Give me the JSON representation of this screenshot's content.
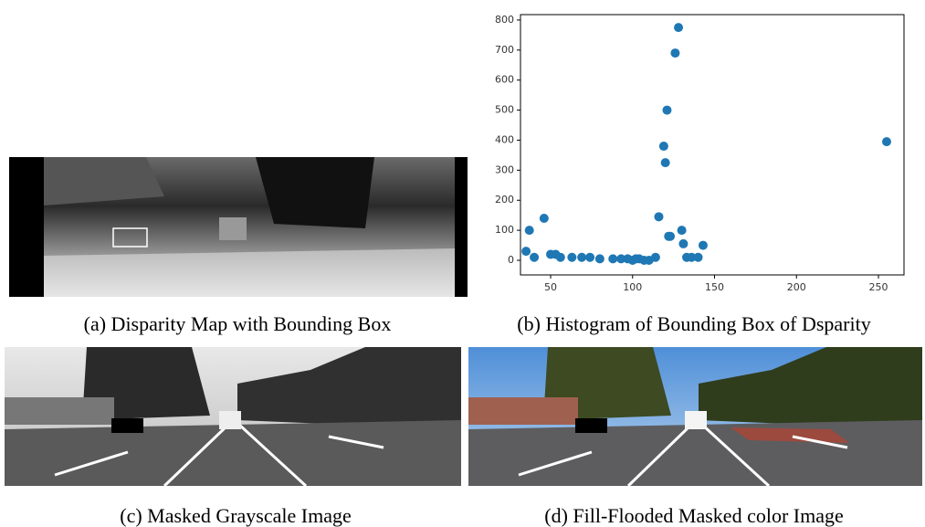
{
  "chart_data": {
    "type": "scatter",
    "x": [
      35,
      37,
      40,
      46,
      50,
      53,
      56,
      63,
      69,
      74,
      80,
      88,
      93,
      97,
      100,
      102,
      104,
      107,
      110,
      114,
      116,
      119,
      120,
      121,
      122,
      123,
      126,
      128,
      130,
      131,
      133,
      136,
      140,
      143,
      255
    ],
    "values": [
      30,
      100,
      10,
      140,
      20,
      20,
      10,
      10,
      10,
      10,
      5,
      5,
      5,
      5,
      0,
      5,
      5,
      0,
      0,
      10,
      145,
      380,
      325,
      500,
      80,
      80,
      690,
      775,
      100,
      55,
      10,
      10,
      10,
      50,
      395
    ],
    "color": "#1f77b4",
    "xlim": [
      31.6,
      265.6
    ],
    "ylim": [
      -48.6,
      818
    ],
    "xticks": [
      50,
      100,
      150,
      200,
      250
    ],
    "yticks": [
      0,
      100,
      200,
      300,
      400,
      500,
      600,
      700,
      800
    ]
  },
  "captions": [
    "(a) Disparity Map with Bounding Box",
    "(b) Histogram of Bounding Box of Dsparity",
    "(c) Masked Grayscale Image",
    "(d) Fill-Flooded Masked color Image"
  ]
}
